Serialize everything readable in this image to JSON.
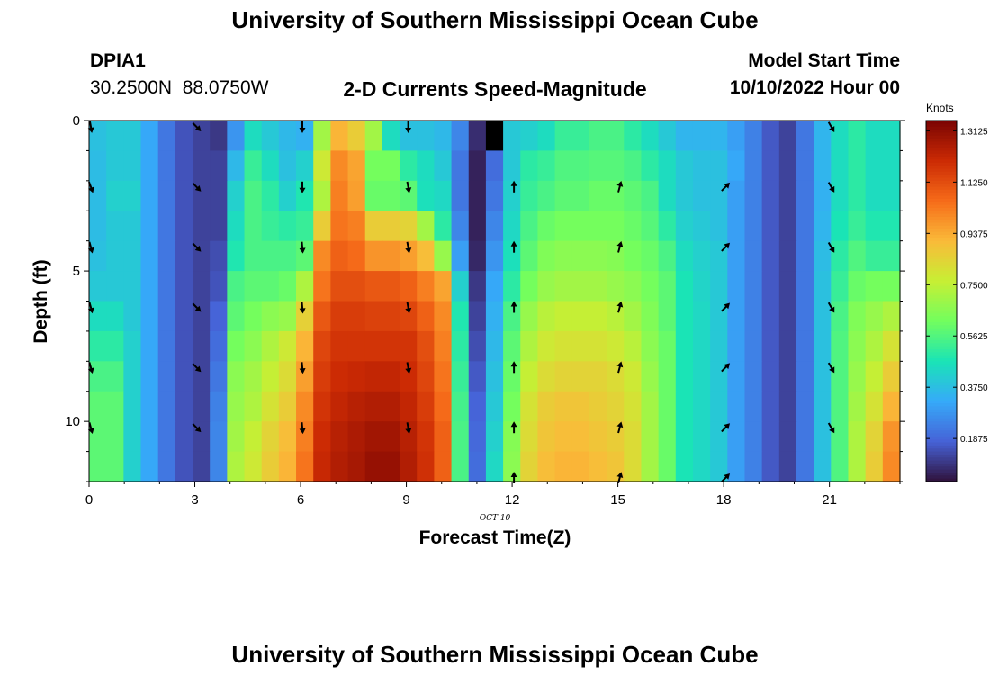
{
  "header": {
    "title": "University of Southern Mississippi Ocean Cube",
    "station_id": "DPIA1",
    "station_coords": "30.2500N  88.0750W",
    "plot_title": "2-D Currents Speed-Magnitude",
    "model_start_label": "Model Start Time",
    "model_start_value": "10/10/2022 Hour 00"
  },
  "footer": {
    "title": "University of Southern Mississippi Ocean Cube"
  },
  "colors": {
    "colormap": [
      "#30123b",
      "#4662d7",
      "#36aaf9",
      "#1ae4b6",
      "#72fe5e",
      "#c7ef34",
      "#faba39",
      "#f66b19",
      "#cb2a04",
      "#7a0403"
    ]
  },
  "chart_data": {
    "type": "heatmap",
    "title": "2-D Currents Speed-Magnitude",
    "xlabel": "Forecast Time(Z)",
    "ylabel": "Depth (ft)",
    "x_date_label": "OCT 10",
    "x_range": [
      0,
      23
    ],
    "x_ticks": [
      0,
      3,
      6,
      9,
      12,
      15,
      18,
      21
    ],
    "x_tick_labels": [
      "0",
      "3",
      "6",
      "9",
      "12",
      "15",
      "18",
      "21"
    ],
    "y_range": [
      0,
      12
    ],
    "y_ticks": [
      0,
      5,
      10
    ],
    "y_tick_labels": [
      "0",
      "5",
      "10"
    ],
    "hours": [
      0,
      0.5,
      1,
      1.5,
      2,
      2.5,
      3,
      3.5,
      4,
      4.5,
      5,
      5.5,
      6,
      6.5,
      7,
      7.5,
      8,
      8.5,
      9,
      9.5,
      10,
      10.5,
      11,
      11.5,
      12,
      12.5,
      13,
      13.5,
      14,
      14.5,
      15,
      15.5,
      16,
      16.5,
      17,
      17.5,
      18,
      18.5,
      19,
      19.5,
      20,
      20.5,
      21,
      21.5,
      22,
      22.5,
      23
    ],
    "depths_ft": [
      0,
      1,
      2,
      3,
      4,
      5,
      6,
      7,
      8,
      9,
      10,
      11
    ],
    "colorbar": {
      "label": "Knots",
      "min": 0.03,
      "max": 1.35,
      "tick_values": [
        1.3125,
        1.125,
        0.9375,
        0.75,
        0.5625,
        0.375,
        0.1875
      ],
      "tick_labels": [
        "1.3125",
        "1.1250",
        "0.9375",
        "0.7500",
        "0.5625",
        "0.3750",
        "0.1875"
      ]
    },
    "speed_knots": [
      [
        0.38,
        0.4,
        0.4,
        0.32,
        0.22,
        0.15,
        0.12,
        0.1,
        0.28,
        0.45,
        0.4,
        0.36,
        0.34,
        0.7,
        0.92,
        0.86,
        0.7,
        0.45,
        0.38,
        0.38,
        0.36,
        0.25,
        0.08,
        0.0,
        0.4,
        0.42,
        0.45,
        0.52,
        0.52,
        0.55,
        0.55,
        0.5,
        0.45,
        0.4,
        0.35,
        0.35,
        0.35,
        0.3,
        0.24,
        0.16,
        0.12,
        0.22,
        0.35,
        0.45,
        0.5,
        0.45,
        0.45
      ],
      [
        0.37,
        0.4,
        0.4,
        0.32,
        0.22,
        0.15,
        0.12,
        0.12,
        0.36,
        0.52,
        0.45,
        0.38,
        0.42,
        0.78,
        1.0,
        0.95,
        0.62,
        0.62,
        0.5,
        0.45,
        0.4,
        0.22,
        0.06,
        0.2,
        0.4,
        0.5,
        0.52,
        0.56,
        0.56,
        0.57,
        0.57,
        0.55,
        0.5,
        0.45,
        0.4,
        0.38,
        0.38,
        0.32,
        0.24,
        0.16,
        0.12,
        0.22,
        0.35,
        0.45,
        0.5,
        0.45,
        0.45
      ],
      [
        0.37,
        0.42,
        0.42,
        0.32,
        0.22,
        0.15,
        0.12,
        0.12,
        0.42,
        0.55,
        0.5,
        0.42,
        0.48,
        0.72,
        1.02,
        0.96,
        0.6,
        0.6,
        0.58,
        0.46,
        0.44,
        0.22,
        0.06,
        0.22,
        0.42,
        0.52,
        0.55,
        0.58,
        0.58,
        0.6,
        0.6,
        0.58,
        0.55,
        0.45,
        0.4,
        0.38,
        0.38,
        0.3,
        0.24,
        0.16,
        0.12,
        0.22,
        0.34,
        0.45,
        0.5,
        0.45,
        0.45
      ],
      [
        0.37,
        0.4,
        0.4,
        0.32,
        0.22,
        0.15,
        0.12,
        0.12,
        0.45,
        0.55,
        0.52,
        0.5,
        0.52,
        0.86,
        1.04,
        1.02,
        0.86,
        0.86,
        0.84,
        0.7,
        0.5,
        0.25,
        0.06,
        0.25,
        0.44,
        0.55,
        0.6,
        0.62,
        0.62,
        0.62,
        0.62,
        0.6,
        0.57,
        0.5,
        0.42,
        0.4,
        0.38,
        0.3,
        0.24,
        0.16,
        0.12,
        0.22,
        0.35,
        0.47,
        0.52,
        0.48,
        0.48
      ],
      [
        0.38,
        0.4,
        0.4,
        0.32,
        0.22,
        0.15,
        0.12,
        0.14,
        0.48,
        0.55,
        0.55,
        0.55,
        0.58,
        1.0,
        1.08,
        1.06,
        0.98,
        0.98,
        0.96,
        0.9,
        0.68,
        0.3,
        0.07,
        0.28,
        0.46,
        0.58,
        0.64,
        0.66,
        0.66,
        0.66,
        0.65,
        0.62,
        0.6,
        0.55,
        0.45,
        0.42,
        0.4,
        0.3,
        0.24,
        0.16,
        0.12,
        0.22,
        0.37,
        0.5,
        0.56,
        0.52,
        0.52
      ],
      [
        0.4,
        0.4,
        0.4,
        0.32,
        0.22,
        0.15,
        0.12,
        0.15,
        0.55,
        0.58,
        0.58,
        0.6,
        0.72,
        1.04,
        1.12,
        1.12,
        1.1,
        1.1,
        1.08,
        1.02,
        0.95,
        0.42,
        0.1,
        0.32,
        0.5,
        0.62,
        0.68,
        0.7,
        0.7,
        0.7,
        0.68,
        0.66,
        0.62,
        0.58,
        0.47,
        0.43,
        0.4,
        0.3,
        0.24,
        0.16,
        0.12,
        0.22,
        0.38,
        0.52,
        0.6,
        0.62,
        0.62
      ],
      [
        0.45,
        0.45,
        0.4,
        0.32,
        0.22,
        0.15,
        0.12,
        0.18,
        0.58,
        0.62,
        0.66,
        0.68,
        0.85,
        1.1,
        1.16,
        1.16,
        1.15,
        1.15,
        1.14,
        1.08,
        1.0,
        0.48,
        0.12,
        0.34,
        0.55,
        0.68,
        0.74,
        0.76,
        0.76,
        0.76,
        0.74,
        0.7,
        0.64,
        0.58,
        0.47,
        0.44,
        0.4,
        0.3,
        0.24,
        0.16,
        0.12,
        0.22,
        0.38,
        0.55,
        0.64,
        0.68,
        0.72
      ],
      [
        0.5,
        0.5,
        0.42,
        0.32,
        0.22,
        0.15,
        0.12,
        0.2,
        0.62,
        0.66,
        0.72,
        0.78,
        0.92,
        1.14,
        1.18,
        1.18,
        1.18,
        1.18,
        1.18,
        1.12,
        1.02,
        0.5,
        0.14,
        0.36,
        0.58,
        0.72,
        0.78,
        0.8,
        0.8,
        0.8,
        0.78,
        0.74,
        0.66,
        0.6,
        0.47,
        0.44,
        0.4,
        0.3,
        0.24,
        0.16,
        0.12,
        0.22,
        0.38,
        0.56,
        0.66,
        0.72,
        0.8
      ],
      [
        0.55,
        0.55,
        0.42,
        0.32,
        0.22,
        0.15,
        0.12,
        0.22,
        0.66,
        0.7,
        0.76,
        0.82,
        0.96,
        1.16,
        1.2,
        1.21,
        1.22,
        1.22,
        1.2,
        1.14,
        1.04,
        0.52,
        0.16,
        0.38,
        0.6,
        0.76,
        0.82,
        0.84,
        0.84,
        0.84,
        0.82,
        0.78,
        0.68,
        0.6,
        0.47,
        0.44,
        0.4,
        0.3,
        0.24,
        0.16,
        0.12,
        0.22,
        0.38,
        0.56,
        0.68,
        0.76,
        0.86
      ],
      [
        0.58,
        0.58,
        0.42,
        0.32,
        0.22,
        0.15,
        0.12,
        0.24,
        0.68,
        0.72,
        0.8,
        0.86,
        1.0,
        1.18,
        1.22,
        1.24,
        1.25,
        1.25,
        1.22,
        1.16,
        1.06,
        0.54,
        0.18,
        0.4,
        0.62,
        0.8,
        0.86,
        0.88,
        0.88,
        0.86,
        0.84,
        0.8,
        0.7,
        0.6,
        0.47,
        0.44,
        0.4,
        0.3,
        0.24,
        0.16,
        0.12,
        0.22,
        0.38,
        0.56,
        0.7,
        0.8,
        0.92
      ],
      [
        0.58,
        0.58,
        0.42,
        0.32,
        0.22,
        0.15,
        0.12,
        0.25,
        0.7,
        0.76,
        0.84,
        0.9,
        1.02,
        1.2,
        1.24,
        1.26,
        1.28,
        1.28,
        1.24,
        1.18,
        1.08,
        0.55,
        0.19,
        0.42,
        0.65,
        0.82,
        0.88,
        0.9,
        0.9,
        0.88,
        0.86,
        0.82,
        0.7,
        0.6,
        0.47,
        0.44,
        0.4,
        0.3,
        0.24,
        0.16,
        0.12,
        0.22,
        0.38,
        0.56,
        0.72,
        0.84,
        0.98
      ],
      [
        0.58,
        0.58,
        0.42,
        0.32,
        0.22,
        0.15,
        0.12,
        0.25,
        0.72,
        0.78,
        0.86,
        0.92,
        1.04,
        1.21,
        1.25,
        1.27,
        1.3,
        1.3,
        1.25,
        1.19,
        1.08,
        0.55,
        0.2,
        0.44,
        0.66,
        0.84,
        0.9,
        0.92,
        0.92,
        0.9,
        0.88,
        0.82,
        0.7,
        0.6,
        0.47,
        0.44,
        0.4,
        0.3,
        0.24,
        0.16,
        0.12,
        0.22,
        0.38,
        0.56,
        0.72,
        0.86,
        1.0
      ]
    ],
    "vectors": {
      "hours": [
        0,
        3,
        6,
        9,
        12,
        15,
        18,
        21
      ],
      "depths_ft": [
        0,
        2,
        4,
        6,
        8,
        10,
        12
      ],
      "direction_deg": [
        [
          170,
          135,
          180,
          180,
          null,
          null,
          null,
          150
        ],
        [
          160,
          135,
          180,
          170,
          0,
          15,
          45,
          150
        ],
        [
          165,
          135,
          175,
          170,
          0,
          15,
          45,
          150
        ],
        [
          165,
          135,
          175,
          170,
          0,
          15,
          45,
          150
        ],
        [
          165,
          135,
          175,
          170,
          0,
          15,
          45,
          150
        ],
        [
          165,
          135,
          175,
          170,
          0,
          15,
          45,
          150
        ],
        [
          null,
          null,
          null,
          null,
          0,
          15,
          45,
          null
        ]
      ]
    }
  }
}
